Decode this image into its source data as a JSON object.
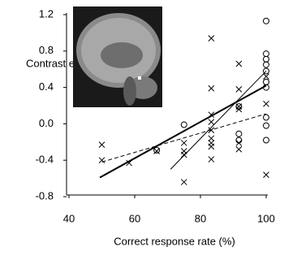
{
  "chart_data": {
    "type": "scatter",
    "xlabel": "Correct response rate (%)",
    "ylabel": "Contrast estimate",
    "xlim": [
      40,
      100
    ],
    "xticks": [
      40,
      60,
      80,
      100
    ],
    "ylim": [
      -0.8,
      1.2
    ],
    "yticks": [
      -0.8,
      -0.4,
      {
        "value": 0,
        "label": "0.0"
      },
      0.4,
      0.8,
      1.2
    ],
    "series": [
      {
        "marker": "x",
        "color": "#000000",
        "x": [
          50,
          50,
          58.3,
          66.7,
          75,
          75,
          75,
          75,
          83.3,
          83.3,
          83.3,
          83.3,
          83.3,
          83.3,
          83.3,
          83.3,
          83.3,
          91.7,
          91.7,
          91.7,
          91.7,
          91.7,
          91.7,
          100,
          100,
          100
        ],
        "values": [
          -0.23,
          -0.4,
          -0.43,
          -0.3,
          -0.21,
          -0.3,
          -0.34,
          -0.64,
          0.94,
          0.39,
          0.1,
          0.02,
          -0.07,
          -0.16,
          -0.21,
          -0.25,
          -0.39,
          0.66,
          0.38,
          0.19,
          0.16,
          -0.21,
          -0.28,
          0.52,
          0.22,
          -0.56
        ]
      },
      {
        "marker": "circle",
        "color": "#000000",
        "x": [
          66.7,
          75,
          91.7,
          91.7,
          91.7,
          100,
          100,
          100,
          100,
          100,
          100,
          100,
          100,
          100,
          100
        ],
        "values": [
          -0.29,
          -0.01,
          0.19,
          -0.11,
          -0.18,
          1.13,
          0.77,
          0.71,
          0.65,
          0.58,
          0.46,
          0.4,
          0.07,
          -0.02,
          -0.18
        ]
      }
    ],
    "lines": [
      {
        "style": "dashed",
        "width": 1,
        "color": "#000000",
        "x": [
          50,
          100
        ],
        "values": [
          -0.42,
          0.11
        ]
      },
      {
        "style": "solid",
        "width": 2,
        "color": "#000000",
        "x": [
          49.4,
          100
        ],
        "values": [
          -0.59,
          0.42
        ]
      },
      {
        "style": "solid",
        "width": 1,
        "color": "#000000",
        "x": [
          70.9,
          100
        ],
        "values": [
          -0.5,
          0.58
        ]
      }
    ]
  }
}
